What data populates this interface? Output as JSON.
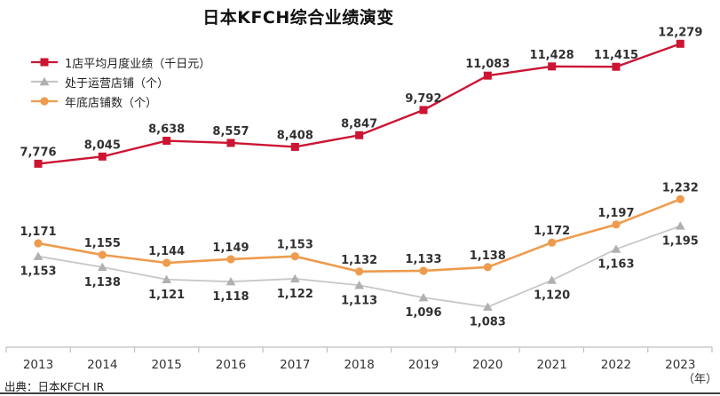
{
  "title": "日本KFCH综合业绩演变",
  "source_note": "出典：日本KFCH IR",
  "colors": {
    "red_series": "#cb1533",
    "gray_series_line": "#c7c7c7",
    "gray_series_marker": "#b0b0b0",
    "orange_series": "#ee9b4d",
    "data_label": "#303030",
    "axis_line": "#bfbfbf",
    "axis_text": "#333333"
  },
  "chart_data": {
    "type": "line",
    "title": "日本KFCH综合业绩演变",
    "categories": [
      2013,
      2014,
      2015,
      2016,
      2017,
      2018,
      2019,
      2020,
      2021,
      2022,
      2023
    ],
    "x_axis_unit_label": "（年）",
    "grid": false,
    "legend_position": "top-left",
    "series": [
      {
        "id": "monthly-sales-per-store",
        "name": "1店平均月度业绩（千日元）",
        "marker": "square",
        "axis": "primary",
        "label_position": "above",
        "line_color": "#cb1533",
        "marker_color": "#cb1533",
        "values": [
          7776,
          8045,
          8638,
          8557,
          8408,
          8847,
          9792,
          11083,
          11428,
          11415,
          12279
        ]
      },
      {
        "id": "stores-in-operation",
        "name": "处于运营店铺（个）",
        "marker": "triangle",
        "axis": "secondary",
        "label_position": "below",
        "line_color": "#c7c7c7",
        "marker_color": "#b0b0b0",
        "values": [
          1153,
          1138,
          1121,
          1118,
          1122,
          1113,
          1096,
          1083,
          1120,
          1163,
          1195
        ]
      },
      {
        "id": "year-end-store-count",
        "name": "年底店铺数（个）",
        "marker": "circle",
        "axis": "secondary",
        "label_position": "above",
        "line_color": "#ee9b4d",
        "marker_color": "#ee9b4d",
        "values": [
          1171,
          1155,
          1144,
          1149,
          1153,
          1132,
          1133,
          1138,
          1172,
          1197,
          1232
        ]
      }
    ]
  }
}
